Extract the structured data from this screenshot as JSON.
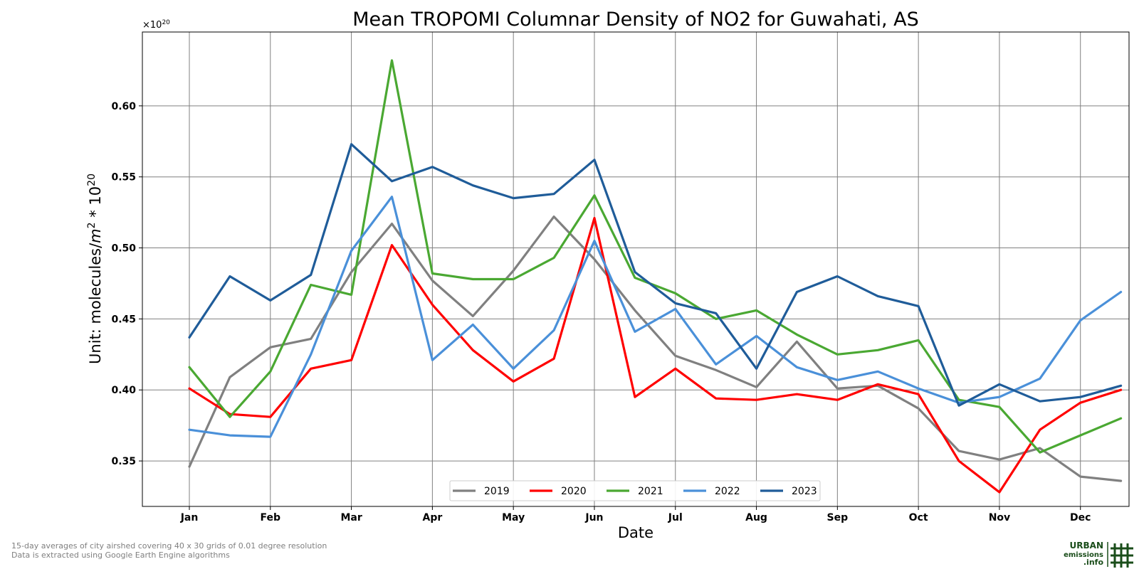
{
  "chart_data": {
    "type": "line",
    "title": "Mean TROPOMI Columnar Density of NO2 for Guwahati, AS",
    "xlabel": "Date",
    "ylabel_prefix": "Unit: molecules/",
    "ylabel_m": "m",
    "ylabel_sup2": "2",
    "ylabel_mid": " * 10",
    "ylabel_sup20": "20",
    "multiplier_base": "×10",
    "multiplier_exp": "20",
    "ylim": [
      0.318,
      0.652
    ],
    "yticks": [
      "0.35",
      "0.40",
      "0.45",
      "0.50",
      "0.55",
      "0.60"
    ],
    "ytick_values": [
      0.35,
      0.4,
      0.45,
      0.5,
      0.55,
      0.6
    ],
    "xlim": [
      -1.16,
      23.2
    ],
    "xtick_labels": [
      "Jan",
      "Feb",
      "Mar",
      "Apr",
      "May",
      "Jun",
      "Jul",
      "Aug",
      "Sep",
      "Oct",
      "Nov",
      "Dec"
    ],
    "xtick_positions": [
      0,
      2,
      4,
      6,
      8,
      10,
      12,
      14,
      16,
      18,
      20,
      22
    ],
    "x": [
      0,
      1,
      2,
      3,
      4,
      5,
      6,
      7,
      8,
      9,
      10,
      11,
      12,
      13,
      14,
      15,
      16,
      17,
      18,
      19,
      20,
      21,
      22,
      23
    ],
    "grid": true,
    "legend_position": "lower-center",
    "series": [
      {
        "name": "2019",
        "color": "#808080",
        "values": [
          0.346,
          0.409,
          0.43,
          0.436,
          0.483,
          0.517,
          0.477,
          0.452,
          0.484,
          0.522,
          0.492,
          0.456,
          0.424,
          0.414,
          0.402,
          0.434,
          0.401,
          0.403,
          0.387,
          0.357,
          0.351,
          0.359,
          0.339,
          0.336
        ]
      },
      {
        "name": "2020",
        "color": "#ff0000",
        "values": [
          0.401,
          0.383,
          0.381,
          0.415,
          0.421,
          0.502,
          0.46,
          0.428,
          0.406,
          0.422,
          0.521,
          0.395,
          0.415,
          0.394,
          0.393,
          0.397,
          0.393,
          0.404,
          0.397,
          0.35,
          0.328,
          0.372,
          0.391,
          0.4
        ]
      },
      {
        "name": "2021",
        "color": "#4aa832",
        "values": [
          0.416,
          0.381,
          0.413,
          0.474,
          0.467,
          0.632,
          0.482,
          0.478,
          0.478,
          0.493,
          0.537,
          0.479,
          0.468,
          0.45,
          0.456,
          0.439,
          0.425,
          0.428,
          0.435,
          0.393,
          0.388,
          0.356,
          0.368,
          0.38
        ]
      },
      {
        "name": "2022",
        "color": "#4a90d9",
        "values": [
          0.372,
          0.368,
          0.367,
          0.425,
          0.498,
          0.536,
          0.421,
          0.446,
          0.415,
          0.442,
          0.505,
          0.441,
          0.457,
          0.418,
          0.438,
          0.416,
          0.407,
          0.413,
          0.401,
          0.391,
          0.395,
          0.408,
          0.449,
          0.469
        ]
      },
      {
        "name": "2023",
        "color": "#1f5c99",
        "values": [
          0.437,
          0.48,
          0.463,
          0.481,
          0.573,
          0.547,
          0.557,
          0.544,
          0.535,
          0.538,
          0.562,
          0.483,
          0.461,
          0.454,
          0.415,
          0.469,
          0.48,
          0.466,
          0.459,
          0.389,
          0.404,
          0.392,
          0.395,
          0.403
        ]
      }
    ]
  },
  "footnotes": {
    "line1": "15-day averages of city airshed covering 40 x 30 grids of 0.01 degree resolution",
    "line2": "Data is extracted using Google Earth Engine algorithms"
  },
  "logo": {
    "line1": "URBAN",
    "line2": "emissions",
    "line3": ".info"
  },
  "colors": {
    "grid": "#808080",
    "logo": "#1a4d1a"
  }
}
